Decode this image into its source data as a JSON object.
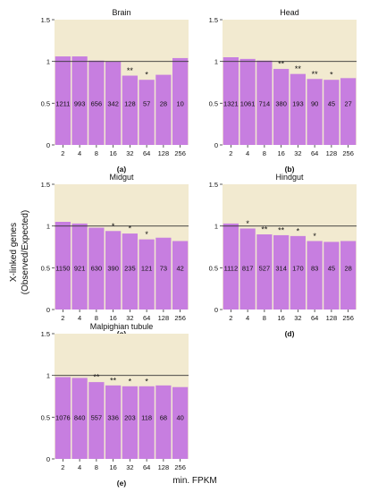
{
  "figure": {
    "ylabel": "X-linked genes\n(Observed/Expected)",
    "xlabel": "min. FPKM"
  },
  "chart_data": [
    {
      "type": "bar",
      "panel": "(a)",
      "title": "Brain",
      "categories": [
        "2",
        "4",
        "8",
        "16",
        "32",
        "64",
        "128",
        "256"
      ],
      "values": [
        1.06,
        1.06,
        1.01,
        1.0,
        0.83,
        0.78,
        0.84,
        1.04
      ],
      "counts": [
        "1211",
        "993",
        "656",
        "342",
        "128",
        "57",
        "28",
        "10"
      ],
      "significance": [
        "",
        "",
        "",
        "",
        "**",
        "*",
        "",
        ""
      ],
      "ylim": [
        0,
        1.5
      ],
      "yticks": [
        0,
        0.5,
        1,
        1.5
      ],
      "ytick_labels": [
        "0",
        "0.5",
        "1",
        "1.5"
      ],
      "reference_line": 1
    },
    {
      "type": "bar",
      "panel": "(b)",
      "title": "Head",
      "categories": [
        "2",
        "4",
        "8",
        "16",
        "32",
        "64",
        "128",
        "256"
      ],
      "values": [
        1.05,
        1.03,
        1.01,
        0.91,
        0.85,
        0.79,
        0.78,
        0.8
      ],
      "counts": [
        "1321",
        "1061",
        "714",
        "380",
        "193",
        "90",
        "45",
        "27"
      ],
      "significance": [
        "",
        "",
        "",
        "**",
        "**",
        "**",
        "*",
        ""
      ],
      "ylim": [
        0,
        1.5
      ],
      "yticks": [
        0,
        0.5,
        1,
        1.5
      ],
      "ytick_labels": [
        "0",
        "0.5",
        "1",
        "1.5"
      ],
      "reference_line": 1
    },
    {
      "type": "bar",
      "panel": "(c)",
      "title": "Midgut",
      "categories": [
        "2",
        "4",
        "8",
        "16",
        "32",
        "64",
        "128",
        "256"
      ],
      "values": [
        1.05,
        1.03,
        0.98,
        0.94,
        0.91,
        0.84,
        0.86,
        0.82
      ],
      "counts": [
        "1150",
        "921",
        "630",
        "390",
        "235",
        "121",
        "73",
        "42"
      ],
      "significance": [
        "",
        "",
        "",
        "*",
        "*",
        "*",
        "",
        ""
      ],
      "ylim": [
        0,
        1.5
      ],
      "yticks": [
        0,
        0.5,
        1,
        1.5
      ],
      "ytick_labels": [
        "0",
        "0.5",
        "1",
        "1.5"
      ],
      "reference_line": 1
    },
    {
      "type": "bar",
      "panel": "(d)",
      "title": "Hindgut",
      "categories": [
        "2",
        "4",
        "8",
        "16",
        "32",
        "64",
        "128",
        "256"
      ],
      "values": [
        1.03,
        0.97,
        0.9,
        0.89,
        0.88,
        0.82,
        0.81,
        0.82
      ],
      "counts": [
        "1112",
        "817",
        "527",
        "314",
        "170",
        "83",
        "45",
        "28"
      ],
      "significance": [
        "",
        "*",
        "**",
        "**",
        "*",
        "*",
        "",
        ""
      ],
      "ylim": [
        0,
        1.5
      ],
      "yticks": [
        0,
        0.5,
        1,
        1.5
      ],
      "ytick_labels": [
        "0",
        "0.5",
        "1",
        "1.5"
      ],
      "reference_line": 1
    },
    {
      "type": "bar",
      "panel": "(e)",
      "title": "Malpighian tubule",
      "categories": [
        "2",
        "4",
        "8",
        "16",
        "32",
        "64",
        "128",
        "256"
      ],
      "values": [
        0.98,
        0.97,
        0.92,
        0.88,
        0.87,
        0.87,
        0.88,
        0.86
      ],
      "counts": [
        "1076",
        "840",
        "557",
        "336",
        "203",
        "118",
        "68",
        "40"
      ],
      "significance": [
        "",
        "",
        "**",
        "**",
        "*",
        "*",
        "",
        ""
      ],
      "ylim": [
        0,
        1.5
      ],
      "yticks": [
        0,
        0.5,
        1,
        1.5
      ],
      "ytick_labels": [
        "0",
        "0.5",
        "1",
        "1.5"
      ],
      "reference_line": 1
    }
  ],
  "colors": {
    "bar": "#c77ee0",
    "plot_background": "#f2ead0",
    "reference_line": "#333333",
    "text": "#111111"
  }
}
